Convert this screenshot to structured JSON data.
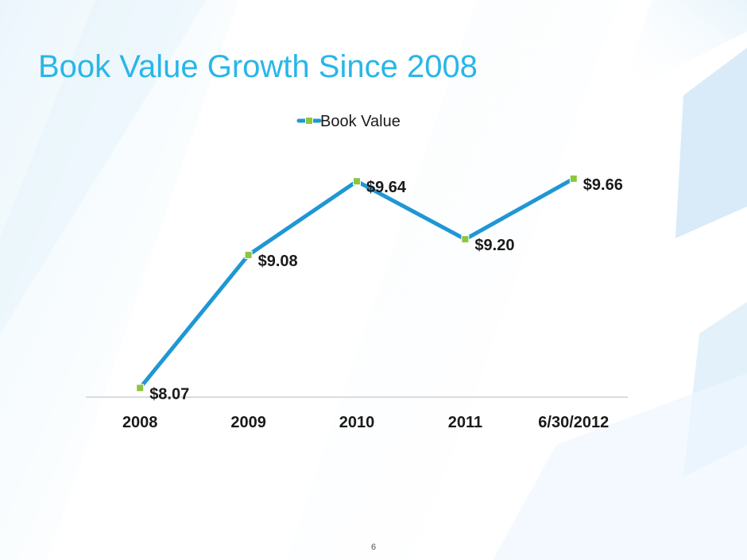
{
  "slide": {
    "title": "Book Value Growth Since 2008",
    "page_number": "6"
  },
  "colors": {
    "title": "#29b6e8",
    "line": "#1f97d4",
    "marker_fill": "#8cc63f",
    "text": "#1a1a1a",
    "axis": "#b9b9b9"
  },
  "chart_data": {
    "type": "line",
    "title": "",
    "xlabel": "",
    "ylabel": "",
    "categories": [
      "2008",
      "2009",
      "2010",
      "2011",
      "6/30/2012"
    ],
    "ylim": [
      8.0,
      9.75
    ],
    "grid": false,
    "legend_position": "top",
    "series": [
      {
        "name": "Book Value",
        "values": [
          8.07,
          9.08,
          9.64,
          9.2,
          9.66
        ],
        "labels": [
          "$8.07",
          "$9.08",
          "$9.64",
          "$9.20",
          "$9.66"
        ]
      }
    ]
  }
}
